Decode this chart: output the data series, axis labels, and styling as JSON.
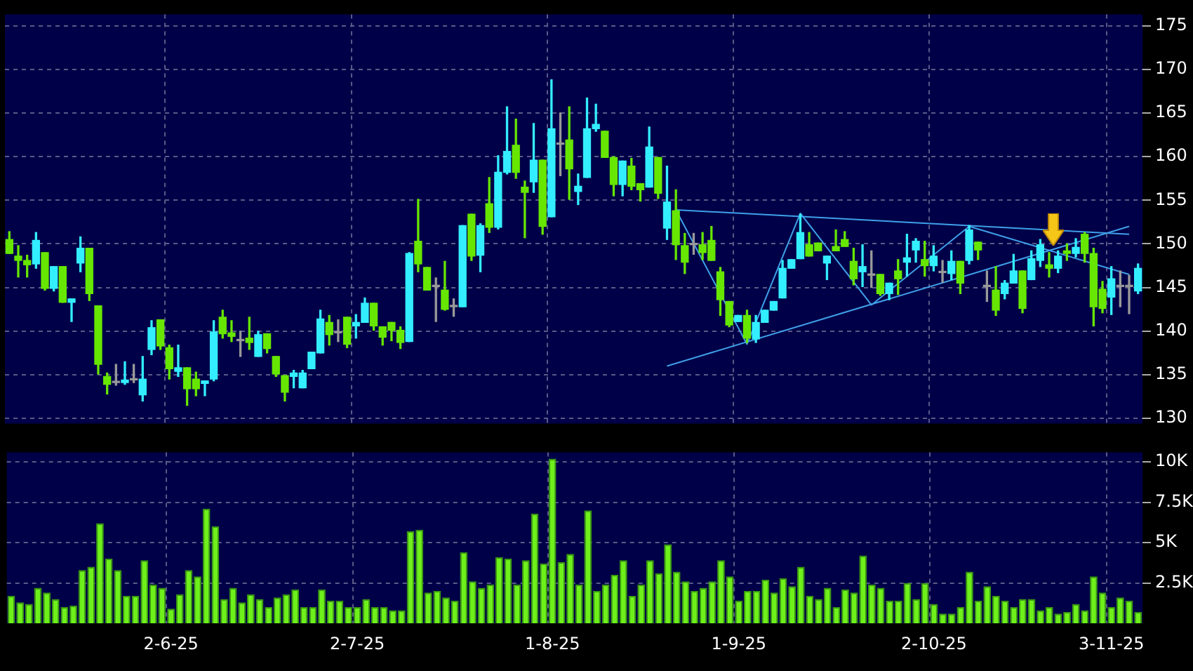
{
  "chart_data": [
    {
      "type": "candlestick",
      "categories": [
        null,
        null,
        null,
        null,
        null,
        null,
        null,
        null,
        null,
        null,
        null,
        null,
        null,
        null,
        null,
        null,
        null,
        null,
        null,
        null,
        null,
        null,
        null,
        null,
        null,
        null,
        null,
        null,
        null,
        null,
        null,
        null,
        null,
        null,
        null,
        null,
        null,
        null,
        null,
        null,
        null,
        null,
        null,
        null,
        null,
        null,
        null,
        null,
        null,
        null,
        null,
        null,
        null,
        null,
        null,
        null,
        null,
        null,
        null,
        null,
        null,
        null,
        null,
        null,
        null,
        null,
        null,
        null,
        null,
        null,
        null,
        null,
        null,
        null,
        null,
        null,
        null,
        null,
        null,
        null,
        null,
        null,
        null,
        null,
        null,
        null,
        null,
        null,
        null,
        null,
        null,
        null,
        null,
        null,
        null,
        null,
        null,
        null,
        null,
        null,
        null,
        null,
        null,
        null,
        null,
        null,
        null,
        null,
        null,
        null,
        null,
        null,
        null,
        null,
        null,
        null,
        null,
        null,
        null,
        null,
        null,
        null,
        null,
        null,
        null,
        null,
        null,
        null
      ],
      "ohlc": [
        [
          150.5,
          151.4,
          148.9,
          148.9
        ],
        [
          148.6,
          149.8,
          146.2,
          148.1
        ],
        [
          148.1,
          148.7,
          146.2,
          147.6
        ],
        [
          147.7,
          151.3,
          147.2,
          150.4
        ],
        [
          149.0,
          149.0,
          144.7,
          144.9
        ],
        [
          144.9,
          147.4,
          144.6,
          147.4
        ],
        [
          147.4,
          147.4,
          143.3,
          143.3
        ],
        [
          143.3,
          143.7,
          141.1,
          143.7
        ],
        [
          147.8,
          150.8,
          146.8,
          149.5
        ],
        [
          149.5,
          149.5,
          143.5,
          144.3
        ],
        [
          142.9,
          142.9,
          135.1,
          136.2
        ],
        [
          134.8,
          135.2,
          132.8,
          133.9
        ],
        [
          134.1,
          136.2,
          133.8,
          134.1
        ],
        [
          134.1,
          136.5,
          133.9,
          134.4
        ],
        [
          134.4,
          136.2,
          134.1,
          134.4
        ],
        [
          132.7,
          137.1,
          132.0,
          134.5
        ],
        [
          137.9,
          141.2,
          137.3,
          140.4
        ],
        [
          141.3,
          141.3,
          137.9,
          138.3
        ],
        [
          138.1,
          138.4,
          134.5,
          135.7
        ],
        [
          135.4,
          138.4,
          134.8,
          135.8
        ],
        [
          135.8,
          135.8,
          131.5,
          133.4
        ],
        [
          134.5,
          135.3,
          132.6,
          133.4
        ],
        [
          134.0,
          134.3,
          132.6,
          134.3
        ],
        [
          134.5,
          141.2,
          134.3,
          139.9
        ],
        [
          141.6,
          142.4,
          139.2,
          139.7
        ],
        [
          139.8,
          141.2,
          138.8,
          139.4
        ],
        [
          138.9,
          140.0,
          137.1,
          138.9
        ],
        [
          139.2,
          141.6,
          137.9,
          138.7
        ],
        [
          137.1,
          140.0,
          137.1,
          139.6
        ],
        [
          139.7,
          139.7,
          137.5,
          138.0
        ],
        [
          137.1,
          137.1,
          134.8,
          135.1
        ],
        [
          134.9,
          134.9,
          132.0,
          133.0
        ],
        [
          134.8,
          135.5,
          133.5,
          135.2
        ],
        [
          133.5,
          135.5,
          133.5,
          135.2
        ],
        [
          135.7,
          137.6,
          135.7,
          137.6
        ],
        [
          137.5,
          142.4,
          137.5,
          141.4
        ],
        [
          141.0,
          141.8,
          138.4,
          139.6
        ],
        [
          139.8,
          141.3,
          138.8,
          139.8
        ],
        [
          141.6,
          141.6,
          138.1,
          138.5
        ],
        [
          140.6,
          141.9,
          139.2,
          141.0
        ],
        [
          141.0,
          143.8,
          141.0,
          143.2
        ],
        [
          143.2,
          143.2,
          140.1,
          140.6
        ],
        [
          140.5,
          140.5,
          138.4,
          139.3
        ],
        [
          141.0,
          141.0,
          138.9,
          140.1
        ],
        [
          140.1,
          140.5,
          138.0,
          138.7
        ],
        [
          138.8,
          149.0,
          138.8,
          148.9
        ],
        [
          150.3,
          155.1,
          146.8,
          147.7
        ],
        [
          147.3,
          147.3,
          144.7,
          144.7
        ],
        [
          145.1,
          146.1,
          141.1,
          145.1
        ],
        [
          144.7,
          148.0,
          142.4,
          142.5
        ],
        [
          142.8,
          143.7,
          141.7,
          142.8
        ],
        [
          142.8,
          152.1,
          142.8,
          152.1
        ],
        [
          153.4,
          153.4,
          148.1,
          148.6
        ],
        [
          148.7,
          152.3,
          146.8,
          152.1
        ],
        [
          154.6,
          157.6,
          151.3,
          151.9
        ],
        [
          151.9,
          160.1,
          151.7,
          158.2
        ],
        [
          158.2,
          165.7,
          158.0,
          160.6
        ],
        [
          161.3,
          164.3,
          157.5,
          158.2
        ],
        [
          156.5,
          157.2,
          150.7,
          155.9
        ],
        [
          157.1,
          163.8,
          155.9,
          159.6
        ],
        [
          159.6,
          159.6,
          151.1,
          152.0
        ],
        [
          153.1,
          168.8,
          153.1,
          163.2
        ],
        [
          161.4,
          165.0,
          157.8,
          161.4
        ],
        [
          161.9,
          165.7,
          155.1,
          158.6
        ],
        [
          156.0,
          158.0,
          154.5,
          156.6
        ],
        [
          157.6,
          166.7,
          157.6,
          163.2
        ],
        [
          163.2,
          166.0,
          162.9,
          163.7
        ],
        [
          162.9,
          162.9,
          159.9,
          159.9
        ],
        [
          159.9,
          160.0,
          155.5,
          156.8
        ],
        [
          156.8,
          159.5,
          155.5,
          159.5
        ],
        [
          158.9,
          159.8,
          156.2,
          156.6
        ],
        [
          156.9,
          156.9,
          154.9,
          156.2
        ],
        [
          156.5,
          163.4,
          156.5,
          161.1
        ],
        [
          159.9,
          159.9,
          155.2,
          155.8
        ],
        [
          151.8,
          158.9,
          150.5,
          154.8
        ],
        [
          153.8,
          156.2,
          148.2,
          149.9
        ],
        [
          149.8,
          151.2,
          146.6,
          147.9
        ],
        [
          149.9,
          151.2,
          148.8,
          149.9
        ],
        [
          149.9,
          151.3,
          148.2,
          149.0
        ],
        [
          150.4,
          152.0,
          148.1,
          148.1
        ],
        [
          146.8,
          147.3,
          141.8,
          143.6
        ],
        [
          143.4,
          143.4,
          140.5,
          140.7
        ],
        [
          141.1,
          141.8,
          141.1,
          141.8
        ],
        [
          141.8,
          142.4,
          138.7,
          139.2
        ],
        [
          139.1,
          141.8,
          138.7,
          141.0
        ],
        [
          141.0,
          142.4,
          141.0,
          142.4
        ],
        [
          142.4,
          143.4,
          142.4,
          143.4
        ],
        [
          143.8,
          148.1,
          143.8,
          147.2
        ],
        [
          147.2,
          148.2,
          147.2,
          148.2
        ],
        [
          148.3,
          153.4,
          148.3,
          151.3
        ],
        [
          149.9,
          151.3,
          148.6,
          148.6
        ],
        [
          150.1,
          150.1,
          149.2,
          149.2
        ],
        [
          147.8,
          148.6,
          145.9,
          148.6
        ],
        [
          149.7,
          151.6,
          149.2,
          149.2
        ],
        [
          150.5,
          151.4,
          149.7,
          149.7
        ],
        [
          148.0,
          149.5,
          145.3,
          146.0
        ],
        [
          146.8,
          149.9,
          145.1,
          147.4
        ],
        [
          146.4,
          149.2,
          145.0,
          146.4
        ],
        [
          146.5,
          146.5,
          144.1,
          144.3
        ],
        [
          144.3,
          145.5,
          143.6,
          145.5
        ],
        [
          146.9,
          148.2,
          144.2,
          146.0
        ],
        [
          147.9,
          151.1,
          146.3,
          148.4
        ],
        [
          149.3,
          150.6,
          147.9,
          150.3
        ],
        [
          148.2,
          150.3,
          146.3,
          147.5
        ],
        [
          147.5,
          149.8,
          146.9,
          148.6
        ],
        [
          146.7,
          148.1,
          145.6,
          146.7
        ],
        [
          146.6,
          149.2,
          145.9,
          148.0
        ],
        [
          148.0,
          148.0,
          144.3,
          145.5
        ],
        [
          148.1,
          152.1,
          147.7,
          151.6
        ],
        [
          150.2,
          150.2,
          148.2,
          149.3
        ],
        [
          145.1,
          146.9,
          143.4,
          145.1
        ],
        [
          144.7,
          147.4,
          141.8,
          142.4
        ],
        [
          144.3,
          145.8,
          143.7,
          145.5
        ],
        [
          145.5,
          148.8,
          145.5,
          146.9
        ],
        [
          146.9,
          146.9,
          142.1,
          142.6
        ],
        [
          145.9,
          149.2,
          145.9,
          148.3
        ],
        [
          148.1,
          150.5,
          147.4,
          149.9
        ],
        [
          147.6,
          149.0,
          146.2,
          147.2
        ],
        [
          147.2,
          149.2,
          146.7,
          148.6
        ],
        [
          149.2,
          150.0,
          148.1,
          148.9
        ],
        [
          148.9,
          150.6,
          148.5,
          149.6
        ],
        [
          151.1,
          151.3,
          147.9,
          148.9
        ],
        [
          148.9,
          149.5,
          140.6,
          142.8
        ],
        [
          144.8,
          145.7,
          142.1,
          142.6
        ],
        [
          143.9,
          147.4,
          141.9,
          146.0
        ],
        [
          145.1,
          146.9,
          142.8,
          145.1
        ],
        [
          145.1,
          146.4,
          142.0,
          145.1
        ],
        [
          144.6,
          147.7,
          144.3,
          147.2
        ]
      ],
      "colors": [
        "#66e600",
        "#66e600",
        "#66e600",
        "#33eeff",
        "#66e600",
        "#33eeff",
        "#66e600",
        "#33eeff",
        "#33eeff",
        "#66e600",
        "#66e600",
        "#66e600",
        "#999999",
        "#33eeff",
        "#999999",
        "#33eeff",
        "#33eeff",
        "#66e600",
        "#66e600",
        "#33eeff",
        "#66e600",
        "#66e600",
        "#33eeff",
        "#33eeff",
        "#66e600",
        "#66e600",
        "#999999",
        "#66e600",
        "#33eeff",
        "#66e600",
        "#66e600",
        "#66e600",
        "#33eeff",
        "#33eeff",
        "#33eeff",
        "#33eeff",
        "#66e600",
        "#999999",
        "#66e600",
        "#33eeff",
        "#33eeff",
        "#66e600",
        "#66e600",
        "#66e600",
        "#66e600",
        "#33eeff",
        "#66e600",
        "#66e600",
        "#999999",
        "#66e600",
        "#999999",
        "#33eeff",
        "#66e600",
        "#33eeff",
        "#66e600",
        "#33eeff",
        "#33eeff",
        "#66e600",
        "#66e600",
        "#33eeff",
        "#66e600",
        "#33eeff",
        "#999999",
        "#66e600",
        "#33eeff",
        "#33eeff",
        "#33eeff",
        "#66e600",
        "#66e600",
        "#33eeff",
        "#66e600",
        "#66e600",
        "#33eeff",
        "#66e600",
        "#33eeff",
        "#66e600",
        "#66e600",
        "#999999",
        "#66e600",
        "#66e600",
        "#66e600",
        "#66e600",
        "#33eeff",
        "#66e600",
        "#33eeff",
        "#33eeff",
        "#33eeff",
        "#33eeff",
        "#33eeff",
        "#33eeff",
        "#66e600",
        "#66e600",
        "#33eeff",
        "#66e600",
        "#66e600",
        "#66e600",
        "#33eeff",
        "#999999",
        "#66e600",
        "#33eeff",
        "#66e600",
        "#33eeff",
        "#33eeff",
        "#66e600",
        "#33eeff",
        "#999999",
        "#33eeff",
        "#66e600",
        "#33eeff",
        "#66e600",
        "#999999",
        "#66e600",
        "#33eeff",
        "#33eeff",
        "#66e600",
        "#33eeff",
        "#33eeff",
        "#66e600",
        "#33eeff",
        "#66e600",
        "#33eeff",
        "#66e600",
        "#66e600",
        "#66e600",
        "#33eeff",
        "#999999",
        "#999999",
        "#33eeff"
      ],
      "series": [
        {
          "type": "line",
          "color": "#3fa0e8",
          "values": [
            null,
            null,
            null,
            null,
            null,
            null,
            null,
            null,
            null,
            null,
            null,
            null,
            null,
            null,
            null,
            null,
            null,
            null,
            null,
            null,
            null,
            null,
            null,
            null,
            null,
            null,
            null,
            null,
            null,
            null,
            null,
            null,
            null,
            null,
            null,
            null,
            null,
            null,
            null,
            null,
            null,
            null,
            null,
            null,
            null,
            null,
            null,
            null,
            null,
            null,
            null,
            null,
            null,
            null,
            null,
            null,
            null,
            null,
            null,
            null,
            null,
            null,
            null,
            null,
            null,
            null,
            null,
            null,
            null,
            null,
            null,
            null,
            null,
            null,
            null,
            153.9,
            null,
            null,
            null,
            null,
            null,
            null,
            null,
            null,
            null,
            null,
            null,
            null,
            null,
            null,
            null,
            null,
            null,
            null,
            null,
            null,
            null,
            null,
            null,
            null,
            null,
            null,
            null,
            null,
            null,
            null,
            null,
            null,
            null,
            null,
            null,
            null,
            null,
            null,
            null,
            null,
            null,
            null,
            null,
            null,
            null,
            null,
            null,
            null,
            null,
            null,
            151.1,
            null
          ]
        },
        {
          "type": "line",
          "color": "#3fa0e8",
          "values": [
            null,
            null,
            null,
            null,
            null,
            null,
            null,
            null,
            null,
            null,
            null,
            null,
            null,
            null,
            null,
            null,
            null,
            null,
            null,
            null,
            null,
            null,
            null,
            null,
            null,
            null,
            null,
            null,
            null,
            null,
            null,
            null,
            null,
            null,
            null,
            null,
            null,
            null,
            null,
            null,
            null,
            null,
            null,
            null,
            null,
            null,
            null,
            null,
            null,
            null,
            null,
            null,
            null,
            null,
            null,
            null,
            null,
            null,
            null,
            null,
            null,
            null,
            null,
            null,
            null,
            null,
            null,
            null,
            null,
            null,
            null,
            null,
            null,
            null,
            136.0,
            null,
            null,
            null,
            null,
            null,
            null,
            null,
            null,
            null,
            null,
            null,
            null,
            null,
            null,
            null,
            null,
            null,
            null,
            null,
            null,
            null,
            null,
            null,
            null,
            null,
            null,
            null,
            null,
            null,
            null,
            null,
            null,
            null,
            null,
            null,
            null,
            null,
            null,
            null,
            null,
            null,
            null,
            null,
            null,
            null,
            null,
            null,
            null,
            null,
            null,
            null,
            152.0,
            null
          ]
        },
        {
          "type": "line",
          "color": "#3fa0e8",
          "values": [
            null,
            null,
            null,
            null,
            null,
            null,
            null,
            null,
            null,
            null,
            null,
            null,
            null,
            null,
            null,
            null,
            null,
            null,
            null,
            null,
            null,
            null,
            null,
            null,
            null,
            null,
            null,
            null,
            null,
            null,
            null,
            null,
            null,
            null,
            null,
            null,
            null,
            null,
            null,
            null,
            null,
            null,
            null,
            null,
            null,
            null,
            null,
            null,
            null,
            null,
            null,
            null,
            null,
            null,
            null,
            null,
            null,
            null,
            null,
            null,
            null,
            null,
            null,
            null,
            null,
            null,
            null,
            null,
            null,
            null,
            null,
            null,
            null,
            null,
            null,
            153.9,
            null,
            null,
            null,
            null,
            null,
            null,
            null,
            138.5,
            null,
            null,
            null,
            null,
            null,
            153.5,
            null,
            null,
            null,
            null,
            null,
            null,
            null,
            143.0,
            null,
            null,
            null,
            null,
            null,
            null,
            null,
            null,
            null,
            null,
            152.0,
            null,
            null,
            null,
            null,
            null,
            null,
            null,
            null,
            null,
            null,
            null,
            null,
            null,
            null,
            null,
            null,
            null,
            146.5,
            null
          ]
        }
      ],
      "ylim": [
        129.4,
        176.3
      ],
      "yticks": [
        130,
        135,
        140,
        145,
        150,
        155,
        160,
        165,
        170,
        175
      ],
      "grid": true,
      "tick_labels": "y"
    },
    {
      "type": "bar",
      "categories": [
        null,
        null,
        null,
        null,
        null,
        null,
        null,
        null,
        null,
        null,
        null,
        null,
        null,
        null,
        null,
        null,
        null,
        null,
        "2-6-25",
        null,
        null,
        null,
        null,
        null,
        null,
        null,
        null,
        null,
        null,
        null,
        null,
        null,
        null,
        null,
        null,
        null,
        null,
        null,
        null,
        "2-7-25",
        null,
        null,
        null,
        null,
        null,
        null,
        null,
        null,
        null,
        null,
        null,
        null,
        null,
        null,
        null,
        null,
        null,
        null,
        null,
        null,
        null,
        "1-8-25",
        null,
        null,
        null,
        null,
        null,
        null,
        null,
        null,
        null,
        null,
        null,
        null,
        null,
        null,
        null,
        null,
        null,
        null,
        null,
        null,
        "1-9-25",
        null,
        null,
        null,
        null,
        null,
        null,
        null,
        null,
        null,
        null,
        null,
        null,
        null,
        null,
        null,
        null,
        null,
        null,
        null,
        null,
        null,
        "2-10-25",
        null,
        null,
        null,
        null,
        null,
        null,
        null,
        null,
        null,
        null,
        null,
        null,
        null,
        null,
        null,
        null,
        null,
        null,
        null,
        "3-11-25",
        null,
        null,
        null
      ],
      "values": [
        1700,
        1300,
        1200,
        2200,
        1900,
        1500,
        1000,
        1100,
        3300,
        3500,
        6200,
        4000,
        3300,
        1700,
        1700,
        3900,
        2400,
        2200,
        900,
        1800,
        3300,
        2900,
        7100,
        6000,
        1500,
        2200,
        1300,
        1800,
        1500,
        1000,
        1600,
        1800,
        2100,
        1000,
        1000,
        2100,
        1400,
        1400,
        1000,
        1000,
        1500,
        1000,
        1000,
        800,
        800,
        5700,
        5800,
        1900,
        2000,
        1600,
        1400,
        4400,
        2600,
        2200,
        2400,
        4100,
        4000,
        2400,
        3900,
        6800,
        3700,
        10200,
        3800,
        4300,
        2400,
        7000,
        2000,
        2400,
        3000,
        3900,
        1700,
        2400,
        3900,
        3100,
        4900,
        3200,
        2600,
        2000,
        2200,
        2600,
        3900,
        2900,
        1400,
        2000,
        2000,
        2700,
        1900,
        2800,
        2300,
        3500,
        1700,
        1500,
        2200,
        1000,
        2100,
        1900,
        4200,
        2400,
        2200,
        1400,
        1400,
        2500,
        1500,
        2500,
        1200,
        600,
        600,
        1000,
        3200,
        1400,
        2300,
        1700,
        1400,
        1000,
        1500,
        1500,
        800,
        1000,
        600,
        700,
        1200,
        800,
        2900,
        1900,
        1000,
        1600,
        1400,
        700
      ],
      "color": "#6ef01a",
      "ylim": [
        0,
        10600
      ],
      "yticks": [
        {
          "value": 2500,
          "label": "2.5K"
        },
        {
          "value": 5000,
          "label": "5K"
        },
        {
          "value": 7500,
          "label": "7.5K"
        },
        {
          "value": 10000,
          "label": "10K"
        }
      ],
      "grid": true
    }
  ]
}
